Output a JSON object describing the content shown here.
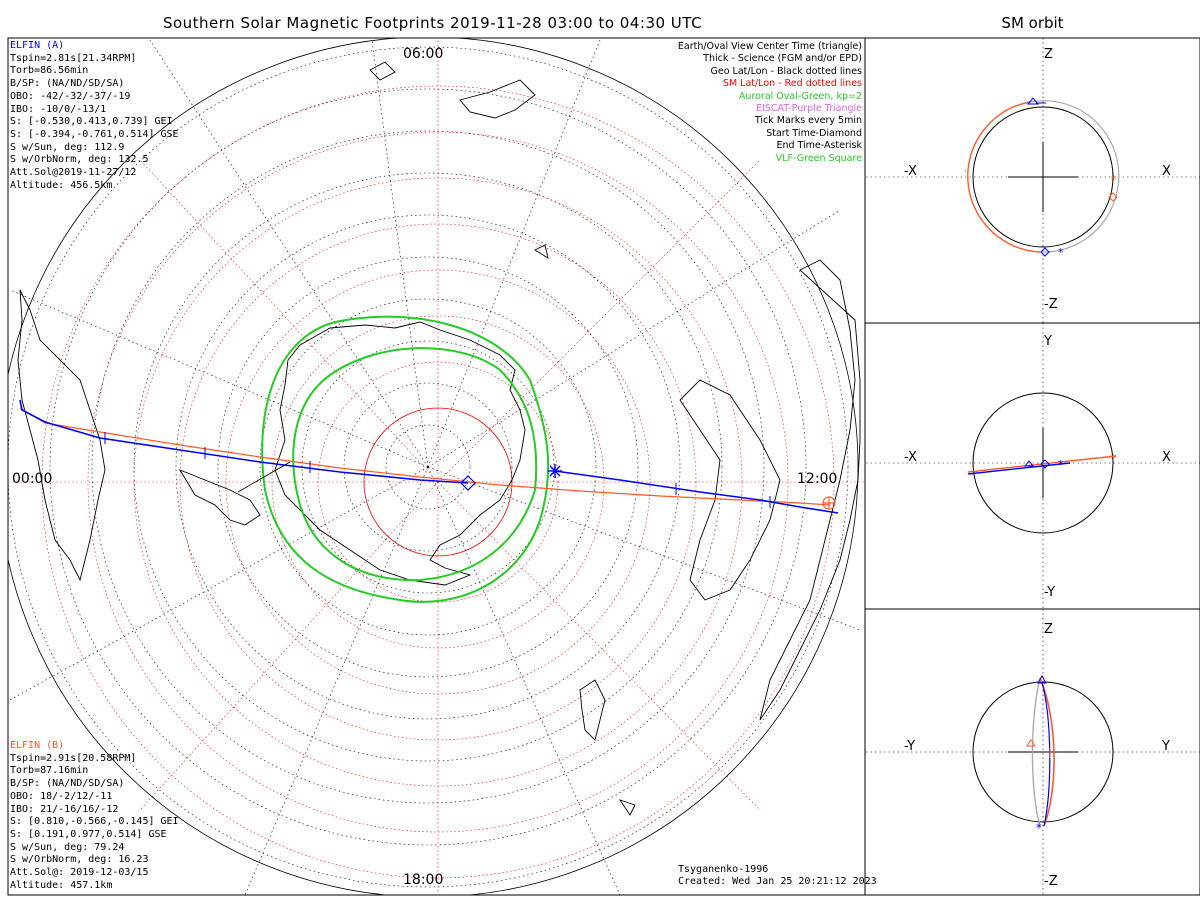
{
  "title": "Southern Solar Magnetic Footprints 2019-11-28 03:00 to 04:30 UTC",
  "orbit_title": "SM orbit",
  "time_labels": {
    "top": "06:00",
    "left": "00:00",
    "right": "12:00",
    "bottom": "18:00"
  },
  "elfin_a": {
    "name": "ELFIN (A)",
    "color": "#0000ff",
    "lines": [
      "Tspin=2.81s[21.34RPM]",
      "Torb=86.56min",
      "B/SP: (NA/ND/SD/SA)",
      "OBO: -42/-32/-37/-19",
      "IBO: -10/0/-13/1",
      "S: [-0.530,0.413,0.739] GEI",
      "S: [-0.394,-0.761,0.514] GSE",
      "S w/Sun, deg: 112.9",
      "S w/OrbNorm, deg: 132.5",
      "Att.Sol@2019-11-27/12",
      "Altitude: 456.5km"
    ]
  },
  "elfin_b": {
    "name": "ELFIN (B)",
    "color": "#ff5a28",
    "lines": [
      "Tspin=2.91s[20.58RPM]",
      "Torb=87.16min",
      "B/SP: (NA/ND/SD/SA)",
      "OBO: 18/-2/12/-11",
      "IBO: 21/-16/16/-12",
      "S: [0.810,-0.566,-0.145] GEI",
      "S: [0.191,0.977,0.514] GSE",
      "S w/Sun, deg: 79.24",
      "S w/OrbNorm, deg: 16.23",
      "Att.Sol@: 2019-12-03/15",
      "Altitude: 457.1km"
    ]
  },
  "legend": [
    {
      "text": "Earth/Oval View Center Time (triangle)",
      "color": "#000000"
    },
    {
      "text": "Thick - Science (FGM and/or EPD)",
      "color": "#000000"
    },
    {
      "text": "Geo Lat/Lon - Black dotted lines",
      "color": "#000000"
    },
    {
      "text": "SM Lat/Lon - Red dotted lines",
      "color": "#ff0000"
    },
    {
      "text": "Auroral Oval-Green, kp=2",
      "color": "#22cc22"
    },
    {
      "text": "EISCAT-Purple Triangle",
      "color": "#dd66dd"
    },
    {
      "text": "Tick Marks every 5min",
      "color": "#000000"
    },
    {
      "text": "Start Time-Diamond",
      "color": "#000000"
    },
    {
      "text": "End Time-Asterisk",
      "color": "#000000"
    },
    {
      "text": "VLF-Green Square",
      "color": "#22cc22"
    }
  ],
  "credits": {
    "model": "Tsyganenko-1996",
    "created": "Created: Wed Jan 25 20:21:12 2023"
  },
  "orbit_panels": [
    {
      "top": "Z",
      "bottom": "-Z",
      "left": "-X",
      "right": "X"
    },
    {
      "top": "Y",
      "bottom": "-Y",
      "left": "-X",
      "right": "X"
    },
    {
      "top": "Z",
      "bottom": "-Z",
      "left": "-Y",
      "right": "Y"
    }
  ],
  "colors": {
    "oval": "#22cc22",
    "grid_red": "#ff0000",
    "sat_a": "#0000ff",
    "sat_b": "#ff5a28"
  }
}
